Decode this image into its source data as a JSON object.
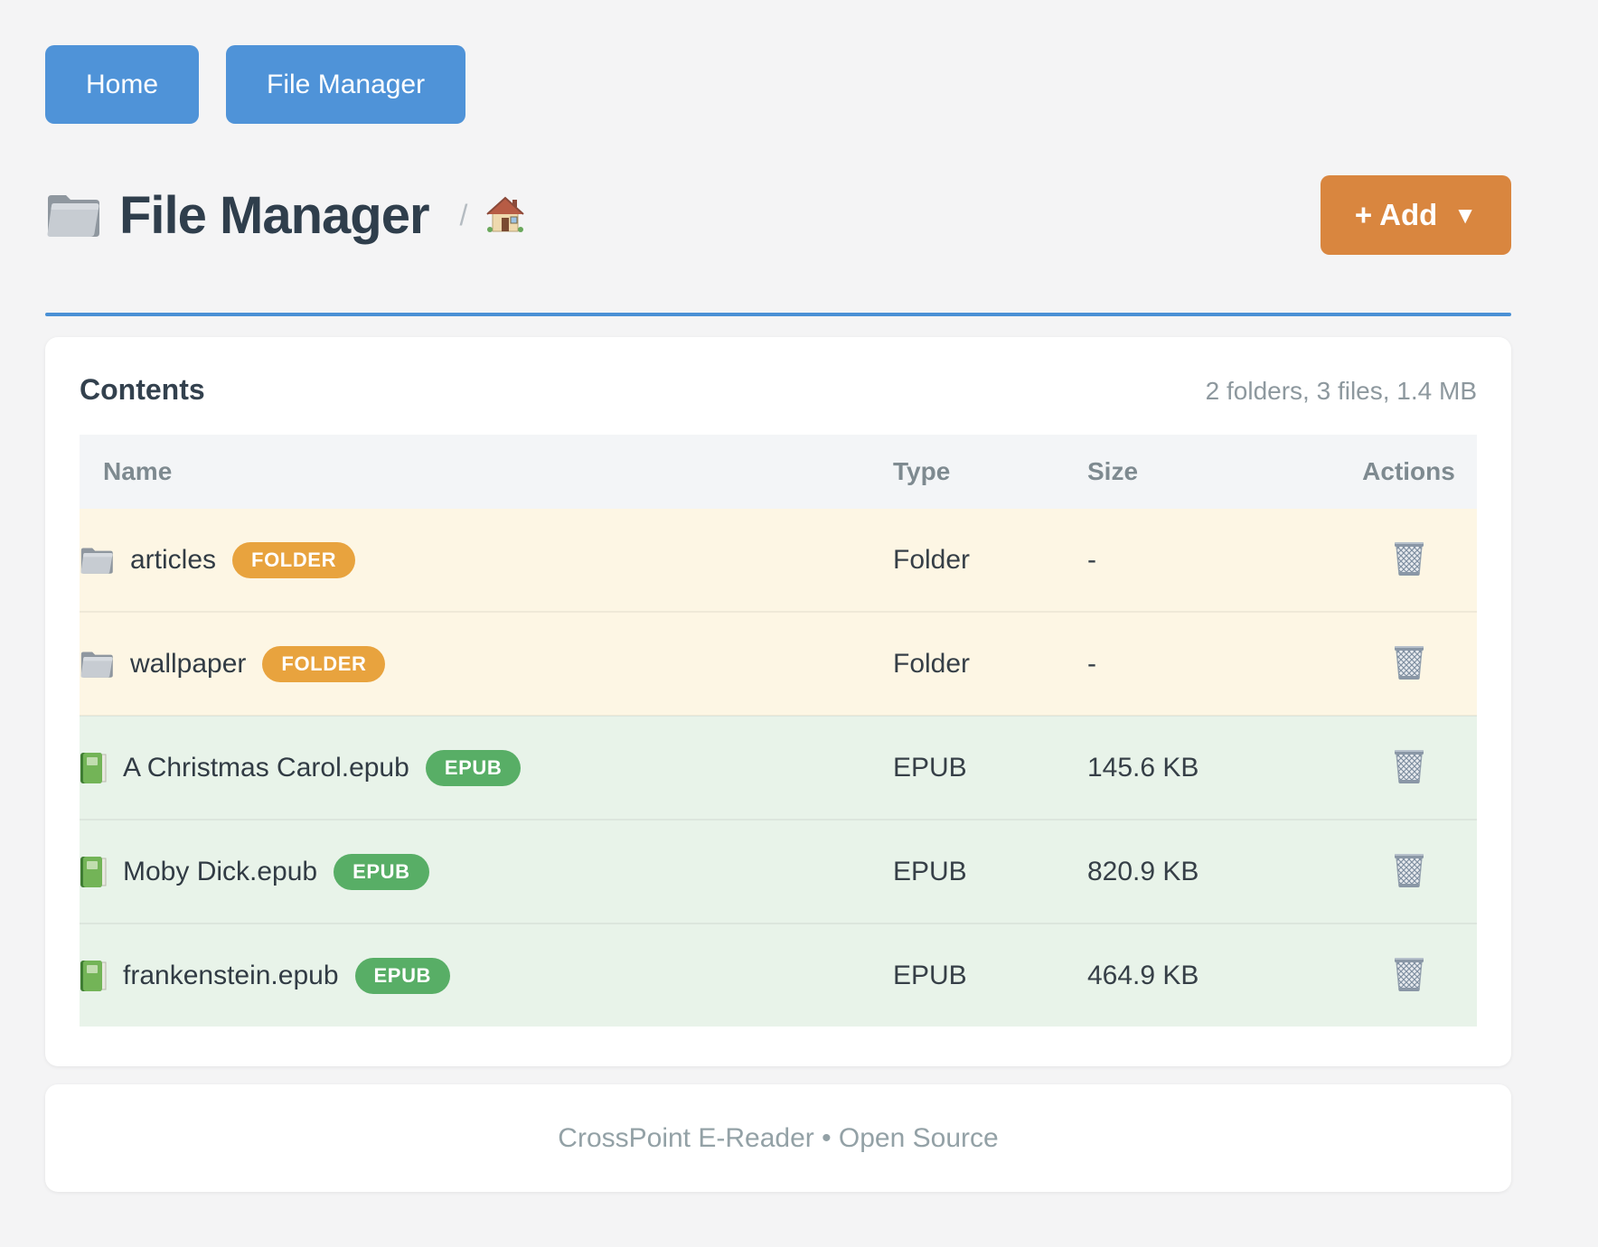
{
  "nav": {
    "buttons": [
      {
        "label": "Home"
      },
      {
        "label": "File Manager"
      }
    ]
  },
  "header": {
    "title": "File Manager",
    "title_icon": "folder-icon",
    "breadcrumb_separator": "/",
    "breadcrumb_home_icon": "home-icon",
    "add_button": {
      "label": "+ Add",
      "caret": "▼"
    }
  },
  "contents": {
    "title": "Contents",
    "summary": "2 folders, 3 files, 1.4 MB",
    "columns": [
      "Name",
      "Type",
      "Size",
      "Actions"
    ],
    "rows": [
      {
        "name": "articles",
        "badge": "FOLDER",
        "type": "Folder",
        "size": "-",
        "kind": "folder",
        "icon": "folder-icon",
        "action_icon": "trash-icon"
      },
      {
        "name": "wallpaper",
        "badge": "FOLDER",
        "type": "Folder",
        "size": "-",
        "kind": "folder",
        "icon": "folder-icon",
        "action_icon": "trash-icon"
      },
      {
        "name": "A Christmas Carol.epub",
        "badge": "EPUB",
        "type": "EPUB",
        "size": "145.6 KB",
        "kind": "epub",
        "icon": "book-icon",
        "action_icon": "trash-icon"
      },
      {
        "name": "Moby Dick.epub",
        "badge": "EPUB",
        "type": "EPUB",
        "size": "820.9 KB",
        "kind": "epub",
        "icon": "book-icon",
        "action_icon": "trash-icon"
      },
      {
        "name": "frankenstein.epub",
        "badge": "EPUB",
        "type": "EPUB",
        "size": "464.9 KB",
        "kind": "epub",
        "icon": "book-icon",
        "action_icon": "trash-icon"
      }
    ]
  },
  "footer": {
    "text": "CrossPoint E-Reader • Open Source"
  },
  "colors": {
    "page_bg": "#f4f4f5",
    "primary_blue": "#4f93d8",
    "divider_blue": "#4a90d5",
    "accent_orange": "#d9863f",
    "badge_orange": "#e8a33e",
    "badge_green": "#58ae66",
    "folder_row_bg": "#fdf6e4",
    "epub_row_bg": "#e8f3e9",
    "table_header_bg": "#f3f5f7",
    "title_text": "#2f3e4c"
  }
}
